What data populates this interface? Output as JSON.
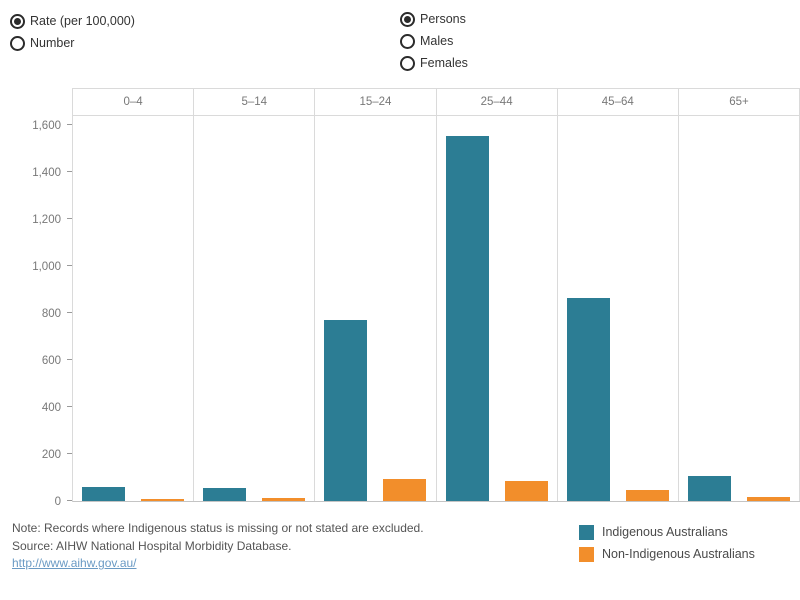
{
  "controls": {
    "measure_group": {
      "name": "measure",
      "options": [
        {
          "label": "Rate (per 100,000)",
          "selected": true
        },
        {
          "label": "Number",
          "selected": false
        }
      ]
    },
    "sex_group": {
      "name": "sex",
      "options": [
        {
          "label": "Persons",
          "selected": true
        },
        {
          "label": "Males",
          "selected": false
        },
        {
          "label": "Females",
          "selected": false
        }
      ]
    }
  },
  "chart_data": {
    "type": "bar",
    "categories": [
      "0–4",
      "5–14",
      "15–24",
      "25–44",
      "45–64",
      "65+"
    ],
    "series": [
      {
        "name": "Indigenous Australians",
        "color": "#2c7d94",
        "values": [
          60,
          55,
          770,
          1555,
          865,
          105
        ]
      },
      {
        "name": "Non-Indigenous Australians",
        "color": "#f28e2b",
        "values": [
          10,
          12,
          95,
          85,
          45,
          15
        ]
      }
    ],
    "title": "",
    "xlabel": "",
    "ylabel": "Rate (per 100,000)",
    "ylim": [
      0,
      1640
    ],
    "ytick_step": 200,
    "ytick_labels": [
      "0",
      "200",
      "400",
      "600",
      "800",
      "1,000",
      "1,200",
      "1,400",
      "1,600"
    ],
    "grid": false,
    "legend_position": "bottom-right"
  },
  "footer": {
    "note": "Note: Records where Indigenous status is missing or not stated are excluded.",
    "source": "Source: AIHW National Hospital Morbidity Database.",
    "link": "http://www.aihw.gov.au/"
  },
  "colors": {
    "indigenous": "#2c7d94",
    "non_indigenous": "#f28e2b",
    "axis_text": "#787878",
    "note_text": "#555555",
    "link": "#6a9ac4",
    "gridline": "#dadada"
  }
}
